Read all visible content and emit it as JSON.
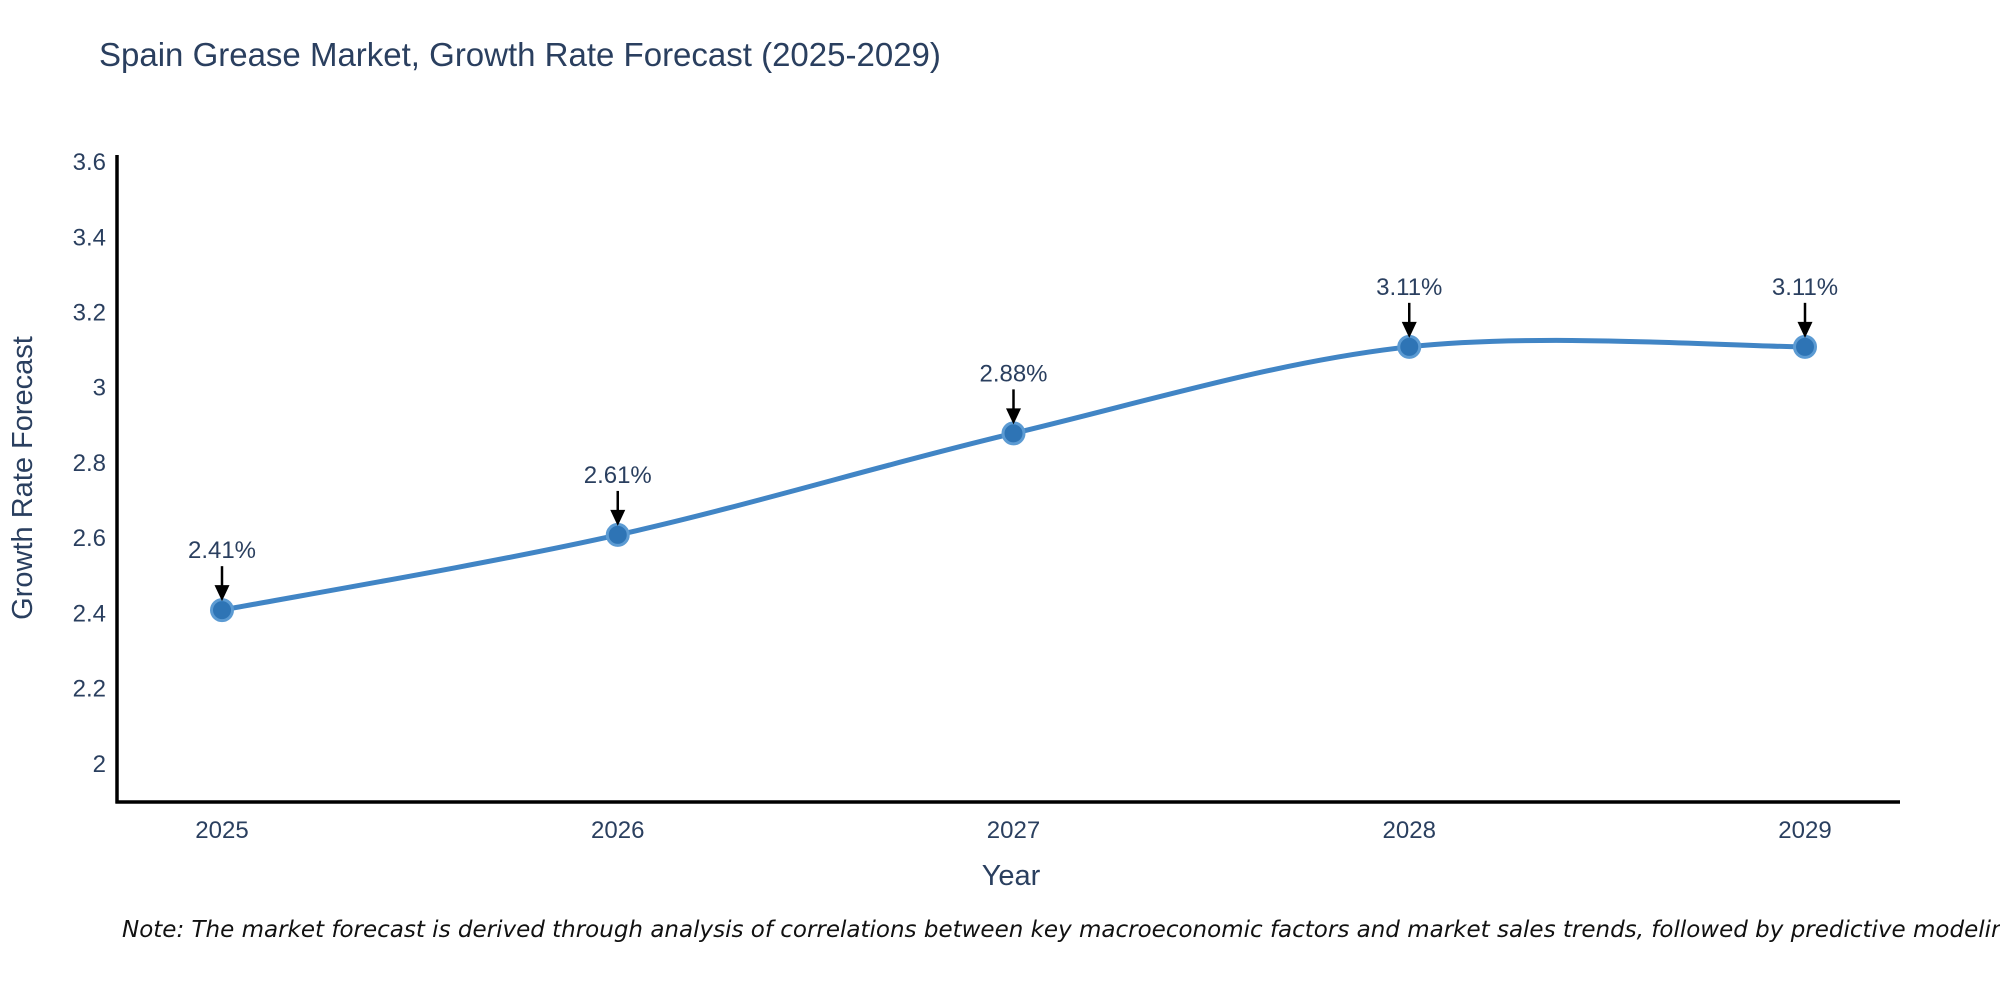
{
  "title": "Spain Grease Market, Growth Rate Forecast (2025-2029)",
  "note": "Note: The market forecast is derived through analysis of correlations between key macroeconomic factors and market sales trends, followed by predictive modeling to project future sales",
  "chart_data": {
    "type": "line",
    "title": "Spain Grease Market, Growth Rate Forecast (2025-2029)",
    "xlabel": "Year",
    "ylabel": "Growth Rate Forecast",
    "categories": [
      "2025",
      "2026",
      "2027",
      "2028",
      "2029"
    ],
    "series": [
      {
        "name": "Growth Rate Forecast",
        "values": [
          2.41,
          2.61,
          2.88,
          3.11,
          3.11
        ]
      }
    ],
    "point_labels": [
      "2.41%",
      "2.61%",
      "2.88%",
      "3.11%",
      "3.11%"
    ],
    "yticks": [
      2,
      2.2,
      2.4,
      2.6,
      2.8,
      3,
      3.2,
      3.4,
      3.6
    ],
    "ytick_labels": [
      "2",
      "2.2",
      "2.4",
      "2.6",
      "2.8",
      "3",
      "3.2",
      "3.4",
      "3.6"
    ],
    "ylim": [
      1.9,
      3.62
    ],
    "grid": false,
    "legend": false,
    "line_shape": "spline",
    "annotation_style": "black-down-arrow",
    "colors": {
      "line": "#4185c5",
      "marker_fill": "#2e74b5",
      "marker_edge": "#5c9bd3",
      "axis_line": "#000000",
      "text": "#2a3f5f",
      "annotation_text": "#2a3f5f",
      "annotation_arrow": "#000000",
      "note_text": "#111111",
      "background": "#ffffff"
    }
  }
}
